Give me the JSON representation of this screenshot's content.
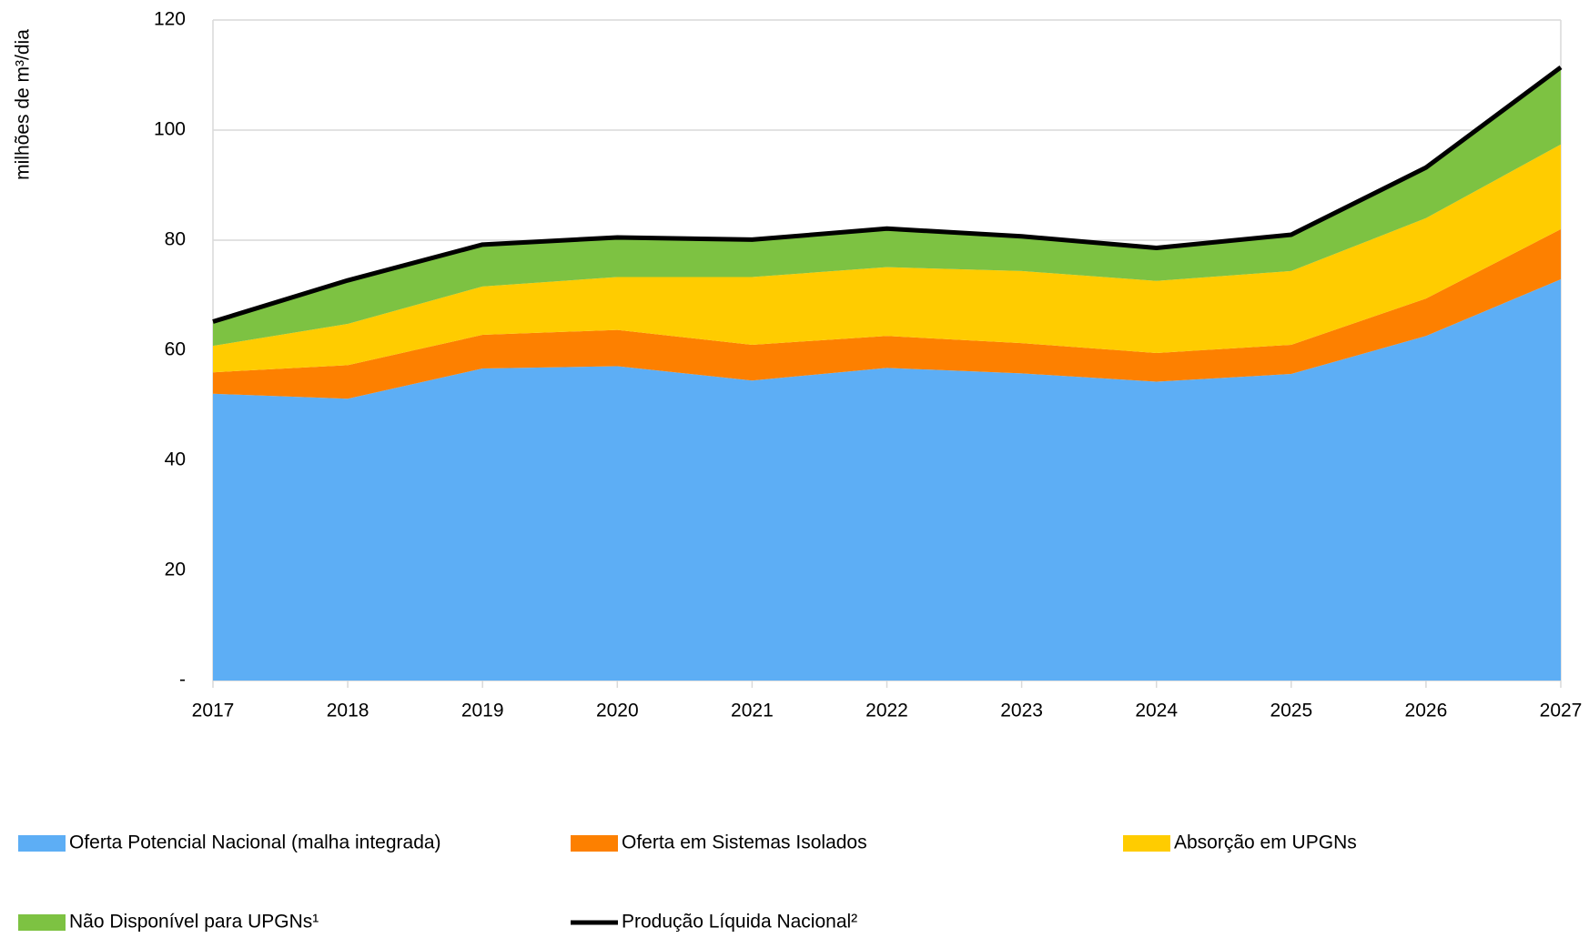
{
  "chart_data": {
    "type": "stacked_area",
    "y_label": "milhões de m³/dia",
    "x": [
      2017,
      2018,
      2019,
      2020,
      2021,
      2022,
      2023,
      2024,
      2025,
      2026,
      2027
    ],
    "xlim": [
      2017,
      2027
    ],
    "xticks": [
      2017,
      2018,
      2019,
      2020,
      2021,
      2022,
      2023,
      2024,
      2025,
      2026,
      2027
    ],
    "ylim": [
      0,
      120
    ],
    "yticks": [
      {
        "value": 0,
        "label": "-"
      },
      20,
      40,
      60,
      80,
      100,
      120
    ],
    "grid": true,
    "series": [
      {
        "name": "Oferta Potencial Nacional (malha integrada)",
        "color": "#5daef5",
        "values": [
          52.1,
          51.2,
          56.7,
          57.1,
          54.5,
          56.8,
          55.8,
          54.3,
          55.7,
          62.6,
          72.9
        ]
      },
      {
        "name": "Oferta em Sistemas Isolados",
        "color": "#fd8000",
        "values": [
          3.9,
          6.1,
          6.1,
          6.6,
          6.5,
          5.8,
          5.5,
          5.2,
          5.3,
          6.8,
          9.1
        ]
      },
      {
        "name": "Absorção em UPGNs",
        "color": "#ffcc00",
        "values": [
          4.8,
          7.5,
          8.8,
          9.6,
          12.3,
          12.5,
          13.1,
          13.1,
          13.4,
          14.6,
          15.4
        ]
      },
      {
        "name": "Não Disponível para UPGNs¹",
        "color": "#7dc242",
        "values": [
          4.4,
          7.9,
          7.6,
          7.2,
          6.8,
          7.0,
          6.3,
          6.0,
          6.6,
          9.2,
          14.0
        ]
      },
      {
        "name": "Produção Líquida Nacional²",
        "color": "#000000",
        "type": "line",
        "values": [
          65.2,
          72.7,
          79.2,
          80.5,
          80.1,
          82.1,
          80.7,
          78.6,
          81.0,
          93.2,
          111.4
        ]
      }
    ]
  }
}
